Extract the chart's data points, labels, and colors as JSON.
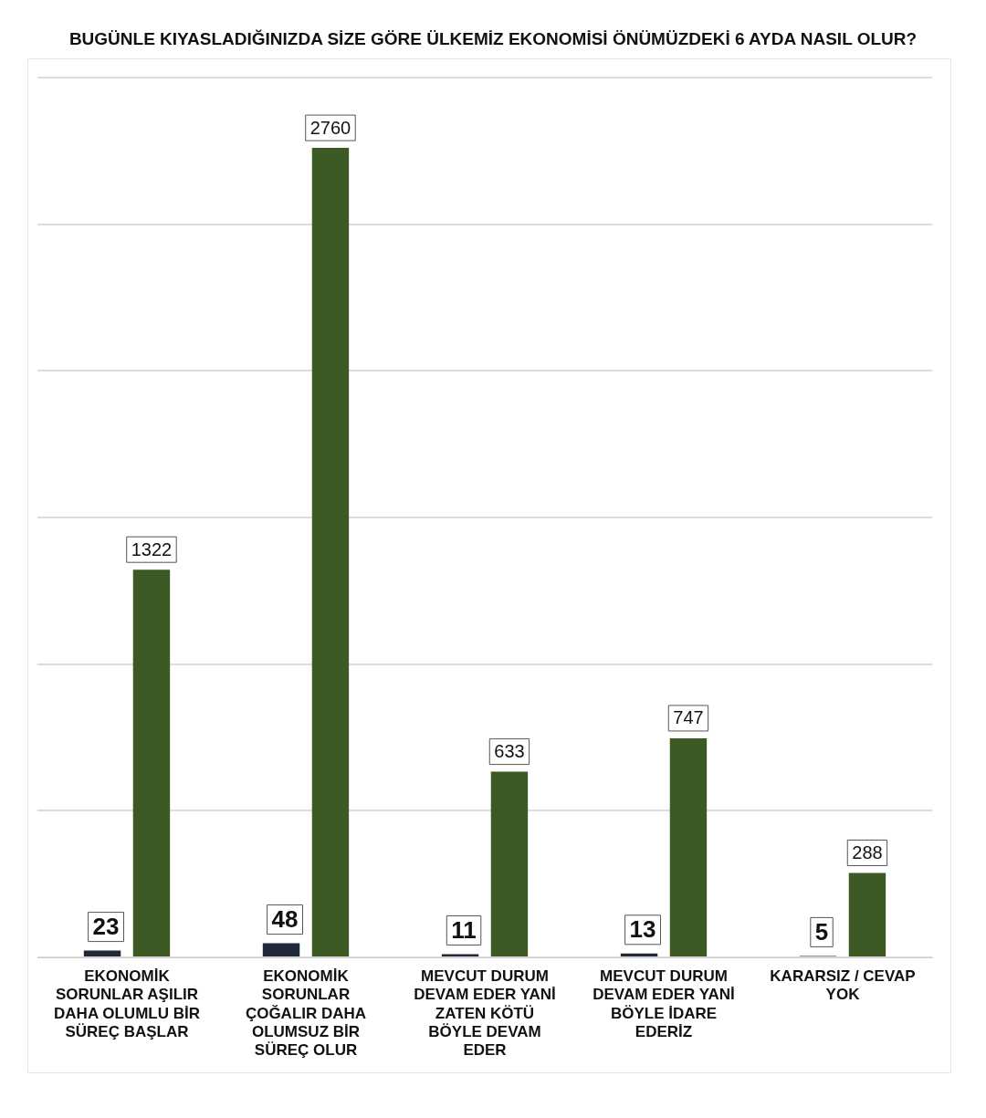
{
  "chart_data": {
    "type": "bar",
    "title": "BUGÜNLE KIYASLADIĞINIZDA SİZE GÖRE ÜLKEMİZ EKONOMİSİ ÖNÜMÜZDEKİ 6 AYDA NASIL OLUR?",
    "categories": [
      "EKONOMİK SORUNLAR AŞILIR DAHA OLUMLU BİR SÜREÇ BAŞLAR",
      "EKONOMİK SORUNLAR ÇOĞALIR DAHA OLUMSUZ BİR SÜREÇ OLUR",
      "MEVCUT DURUM DEVAM EDER YANİ ZATEN KÖTÜ BÖYLE DEVAM EDER",
      "MEVCUT DURUM DEVAM EDER YANİ BÖYLE İDARE EDERİZ",
      "KARARSIZ / CEVAP YOK"
    ],
    "series": [
      {
        "color": "#1f2937",
        "values": [
          23,
          48,
          11,
          13,
          5
        ]
      },
      {
        "color": "#3d5a25",
        "values": [
          1322,
          2760,
          633,
          747,
          288
        ]
      }
    ],
    "ylim": [
      0,
      3000
    ],
    "yticks": [
      {
        "value": 0,
        "label": null
      },
      {
        "value": 500,
        "label": null
      },
      {
        "value": 1000,
        "label": null
      },
      {
        "value": 1500,
        "label": null
      },
      {
        "value": 2000,
        "label": null
      },
      {
        "value": 2500,
        "label": null
      },
      {
        "value": 3000,
        "label": null
      }
    ],
    "tick_labels": "x",
    "grid": "y",
    "legend": false,
    "data_labels": true
  }
}
